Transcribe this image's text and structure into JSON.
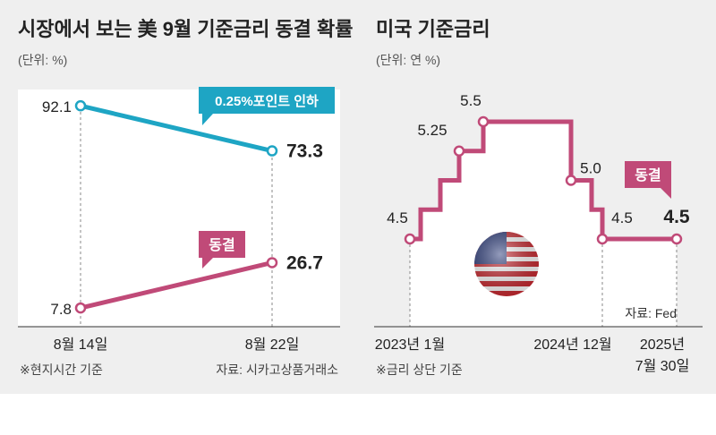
{
  "chart_data": [
    {
      "type": "line",
      "title": "시장에서 보는 美 9월 기준금리 동결 확률",
      "unit": "(단위: %)",
      "categories": [
        "8월 14일",
        "8월 22일"
      ],
      "series": [
        {
          "name": "0.25%포인트 인하",
          "values": [
            92.1,
            73.3
          ],
          "labels": [
            "92.1",
            "73.3"
          ],
          "color": "#1ea5c4"
        },
        {
          "name": "동결",
          "values": [
            7.8,
            26.7
          ],
          "labels": [
            "7.8",
            "26.7"
          ],
          "color": "#c04a78"
        }
      ],
      "ylim": [
        0,
        100
      ],
      "note": "※현지시간 기준",
      "source": "자료: 시카고상품거래소"
    },
    {
      "type": "line",
      "title": "미국 기준금리",
      "unit": "(단위: 연 %)",
      "steps": [
        4.5,
        4.75,
        5.0,
        5.25,
        5.5,
        5.0,
        4.75,
        4.5,
        4.5
      ],
      "labeled_points": [
        {
          "label": "4.5",
          "value": 4.5
        },
        {
          "label": "5.25",
          "value": 5.25
        },
        {
          "label": "5.5",
          "value": 5.5
        },
        {
          "label": "5.0",
          "value": 5.0
        },
        {
          "label": "4.5",
          "value": 4.5
        },
        {
          "label": "4.5",
          "value": 4.5
        }
      ],
      "xlabels": [
        "2023년 1월",
        "2024년 12월",
        "2025년",
        "7월 30일"
      ],
      "callout": "동결",
      "color": "#c04a78",
      "ylim": [
        4.5,
        5.5
      ],
      "note": "※금리 상단 기준",
      "source": "자료: Fed"
    }
  ]
}
